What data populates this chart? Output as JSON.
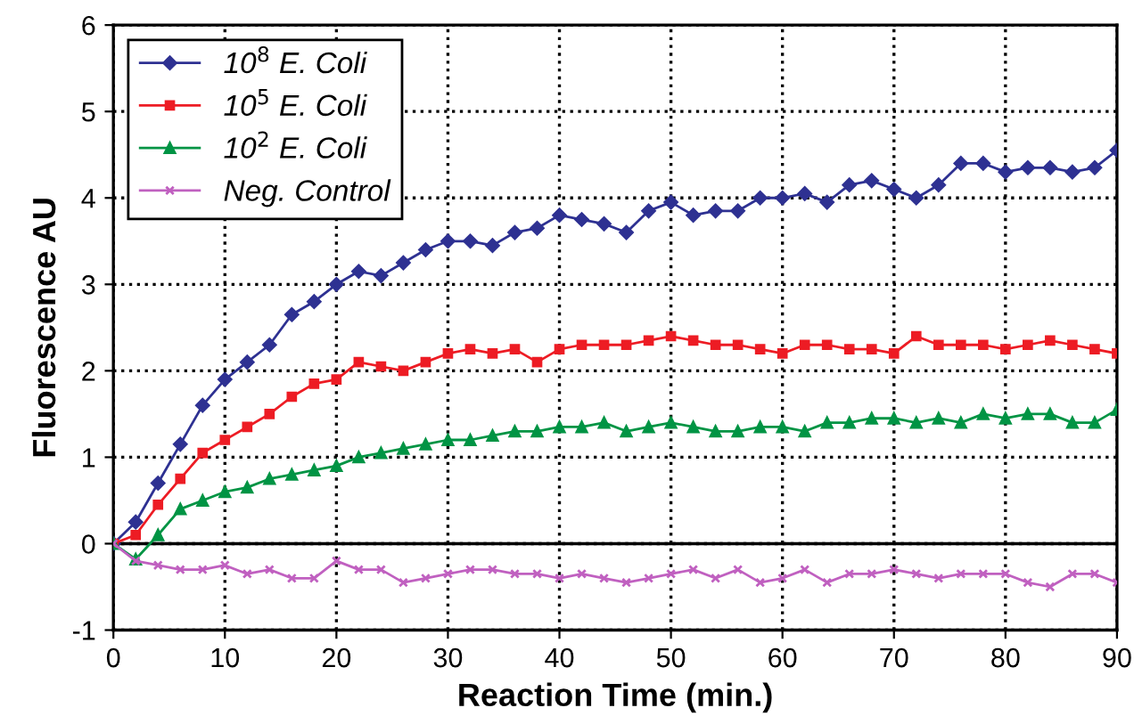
{
  "chart_data": {
    "type": "line",
    "xlabel": "Reaction Time (min.)",
    "ylabel": "Fluorescence AU",
    "x": [
      0,
      2,
      4,
      6,
      8,
      10,
      12,
      14,
      16,
      18,
      20,
      22,
      24,
      26,
      28,
      30,
      32,
      34,
      36,
      38,
      40,
      42,
      44,
      46,
      48,
      50,
      52,
      54,
      56,
      58,
      60,
      62,
      64,
      66,
      68,
      70,
      72,
      74,
      76,
      78,
      80,
      82,
      84,
      86,
      88,
      90
    ],
    "series": [
      {
        "name": "10$^{8}$ E. Coli",
        "color": "#2e3192",
        "marker": "diamond",
        "values": [
          0,
          0.25,
          0.7,
          1.15,
          1.6,
          1.9,
          2.1,
          2.3,
          2.65,
          2.8,
          3.0,
          3.15,
          3.1,
          3.25,
          3.4,
          3.5,
          3.5,
          3.45,
          3.6,
          3.65,
          3.8,
          3.75,
          3.7,
          3.6,
          3.85,
          3.95,
          3.8,
          3.85,
          3.85,
          4.0,
          4.0,
          4.05,
          3.95,
          4.15,
          4.2,
          4.1,
          4.0,
          4.15,
          4.4,
          4.4,
          4.3,
          4.35,
          4.35,
          4.3,
          4.35,
          4.55
        ]
      },
      {
        "name": "10$^{5}$ E. Coli",
        "color": "#ed1c24",
        "marker": "square",
        "values": [
          0,
          0.1,
          0.45,
          0.75,
          1.05,
          1.2,
          1.35,
          1.5,
          1.7,
          1.85,
          1.9,
          2.1,
          2.05,
          2.0,
          2.1,
          2.2,
          2.25,
          2.2,
          2.25,
          2.1,
          2.25,
          2.3,
          2.3,
          2.3,
          2.35,
          2.4,
          2.35,
          2.3,
          2.3,
          2.25,
          2.2,
          2.3,
          2.3,
          2.25,
          2.25,
          2.2,
          2.4,
          2.3,
          2.3,
          2.3,
          2.25,
          2.3,
          2.35,
          2.3,
          2.25,
          2.2
        ]
      },
      {
        "name": "10$^{2}$ E. Coli",
        "color": "#009444",
        "marker": "triangle",
        "values": [
          0,
          -0.18,
          0.1,
          0.4,
          0.5,
          0.6,
          0.65,
          0.75,
          0.8,
          0.85,
          0.9,
          1.0,
          1.05,
          1.1,
          1.15,
          1.2,
          1.2,
          1.25,
          1.3,
          1.3,
          1.35,
          1.35,
          1.4,
          1.3,
          1.35,
          1.4,
          1.35,
          1.3,
          1.3,
          1.35,
          1.35,
          1.3,
          1.4,
          1.4,
          1.45,
          1.45,
          1.4,
          1.45,
          1.4,
          1.5,
          1.45,
          1.5,
          1.5,
          1.4,
          1.4,
          1.55
        ]
      },
      {
        "name": "Neg. Control",
        "color": "#c060c0",
        "marker": "cross",
        "values": [
          0,
          -0.2,
          -0.25,
          -0.3,
          -0.3,
          -0.25,
          -0.35,
          -0.3,
          -0.4,
          -0.4,
          -0.2,
          -0.3,
          -0.3,
          -0.45,
          -0.4,
          -0.35,
          -0.3,
          -0.3,
          -0.35,
          -0.35,
          -0.4,
          -0.35,
          -0.4,
          -0.45,
          -0.4,
          -0.35,
          -0.3,
          -0.4,
          -0.3,
          -0.45,
          -0.4,
          -0.3,
          -0.45,
          -0.35,
          -0.35,
          -0.3,
          -0.35,
          -0.4,
          -0.35,
          -0.35,
          -0.35,
          -0.45,
          -0.5,
          -0.35,
          -0.35,
          -0.45
        ]
      }
    ],
    "xlim": [
      0,
      90
    ],
    "xticks": [
      0,
      10,
      20,
      30,
      40,
      50,
      60,
      70,
      80,
      90
    ],
    "ylim": [
      -1,
      6
    ],
    "yticks": [
      -1,
      0,
      1,
      2,
      3,
      4,
      5,
      6
    ],
    "ref_lines": [
      {
        "axis": "y",
        "value": 0,
        "color": "#000000",
        "line_style": "solid"
      }
    ],
    "grid": true,
    "legend": "top left",
    "line_style": "solid"
  }
}
